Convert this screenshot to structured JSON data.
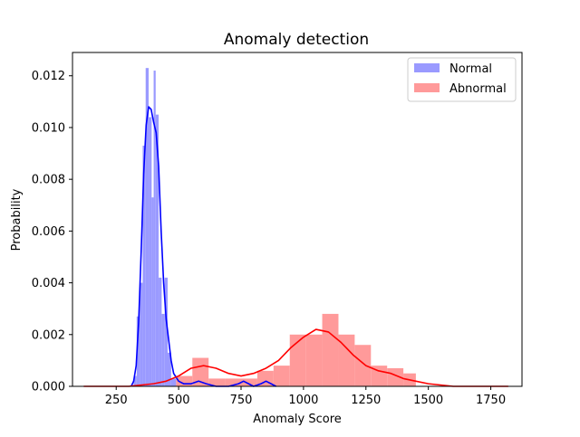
{
  "chart_data": {
    "type": "histogram",
    "title": "Anomaly detection",
    "xlabel": "Anomaly Score",
    "ylabel": "Probability",
    "xlim": [
      75,
      1875
    ],
    "ylim": [
      0,
      0.0129
    ],
    "xticks": [
      250,
      500,
      750,
      1000,
      1250,
      1500,
      1750
    ],
    "yticks": [
      0.0,
      0.002,
      0.004,
      0.006,
      0.008,
      0.01,
      0.012
    ],
    "xtick_labels": [
      "250",
      "500",
      "750",
      "1000",
      "1250",
      "1500",
      "1750"
    ],
    "ytick_labels": [
      "0.000",
      "0.002",
      "0.004",
      "0.006",
      "0.008",
      "0.010",
      "0.012"
    ],
    "legend": {
      "position": "top-right",
      "entries": [
        "Normal",
        "Abnormal"
      ]
    },
    "series": [
      {
        "name": "Normal",
        "color": "#0000ff",
        "bar_color": "#9a9aff",
        "bins": [
          {
            "x0": 310,
            "x1": 320,
            "y": 0.0
          },
          {
            "x0": 320,
            "x1": 332,
            "y": 0.0004
          },
          {
            "x0": 332,
            "x1": 344,
            "y": 0.0027
          },
          {
            "x0": 344,
            "x1": 356,
            "y": 0.004
          },
          {
            "x0": 356,
            "x1": 368,
            "y": 0.0093
          },
          {
            "x0": 368,
            "x1": 380,
            "y": 0.0123
          },
          {
            "x0": 380,
            "x1": 392,
            "y": 0.0104
          },
          {
            "x0": 392,
            "x1": 400,
            "y": 0.0073
          },
          {
            "x0": 400,
            "x1": 408,
            "y": 0.0122
          },
          {
            "x0": 408,
            "x1": 420,
            "y": 0.0105
          },
          {
            "x0": 420,
            "x1": 432,
            "y": 0.0042
          },
          {
            "x0": 432,
            "x1": 444,
            "y": 0.0028
          },
          {
            "x0": 444,
            "x1": 456,
            "y": 0.0042
          },
          {
            "x0": 456,
            "x1": 470,
            "y": 0.0013
          },
          {
            "x0": 470,
            "x1": 490,
            "y": 0.0003
          },
          {
            "x0": 490,
            "x1": 520,
            "y": 0.0001
          },
          {
            "x0": 560,
            "x1": 600,
            "y": 0.0003
          },
          {
            "x0": 745,
            "x1": 775,
            "y": 0.0002
          },
          {
            "x0": 840,
            "x1": 870,
            "y": 0.0002
          }
        ],
        "kde": [
          [
            310,
            0.0
          ],
          [
            320,
            0.0002
          ],
          [
            330,
            0.0008
          ],
          [
            340,
            0.0025
          ],
          [
            350,
            0.0052
          ],
          [
            360,
            0.0082
          ],
          [
            370,
            0.0101
          ],
          [
            380,
            0.0108
          ],
          [
            390,
            0.0107
          ],
          [
            400,
            0.0102
          ],
          [
            410,
            0.0098
          ],
          [
            420,
            0.0085
          ],
          [
            430,
            0.006
          ],
          [
            440,
            0.004
          ],
          [
            450,
            0.0026
          ],
          [
            460,
            0.0018
          ],
          [
            470,
            0.001
          ],
          [
            480,
            0.0005
          ],
          [
            500,
            0.0002
          ],
          [
            520,
            0.0001
          ],
          [
            550,
            0.0001
          ],
          [
            580,
            0.0002
          ],
          [
            610,
            0.0001
          ],
          [
            650,
            0.0
          ],
          [
            700,
            0.0
          ],
          [
            740,
            0.0001
          ],
          [
            760,
            0.0002
          ],
          [
            780,
            0.0001
          ],
          [
            800,
            0.0
          ],
          [
            830,
            0.0001
          ],
          [
            850,
            0.0002
          ],
          [
            870,
            0.0001
          ],
          [
            890,
            0.0
          ]
        ]
      },
      {
        "name": "Abnormal",
        "color": "#ff0000",
        "bar_color": "#ff9a9a",
        "bins": [
          {
            "x0": 490,
            "x1": 555,
            "y": 0.0004
          },
          {
            "x0": 555,
            "x1": 620,
            "y": 0.0011
          },
          {
            "x0": 620,
            "x1": 685,
            "y": 0.0003
          },
          {
            "x0": 685,
            "x1": 750,
            "y": 0.0003
          },
          {
            "x0": 750,
            "x1": 815,
            "y": 0.0003
          },
          {
            "x0": 815,
            "x1": 880,
            "y": 0.0006
          },
          {
            "x0": 880,
            "x1": 945,
            "y": 0.0008
          },
          {
            "x0": 945,
            "x1": 1010,
            "y": 0.002
          },
          {
            "x0": 1010,
            "x1": 1075,
            "y": 0.002
          },
          {
            "x0": 1075,
            "x1": 1140,
            "y": 0.0028
          },
          {
            "x0": 1140,
            "x1": 1205,
            "y": 0.002
          },
          {
            "x0": 1205,
            "x1": 1270,
            "y": 0.0016
          },
          {
            "x0": 1270,
            "x1": 1335,
            "y": 0.0008
          },
          {
            "x0": 1335,
            "x1": 1400,
            "y": 0.0007
          },
          {
            "x0": 1400,
            "x1": 1450,
            "y": 0.0005
          }
        ],
        "kde": [
          [
            120,
            0.0
          ],
          [
            200,
            0.0
          ],
          [
            300,
            0.0
          ],
          [
            400,
            0.0001
          ],
          [
            450,
            0.0002
          ],
          [
            500,
            0.0004
          ],
          [
            550,
            0.0007
          ],
          [
            600,
            0.0008
          ],
          [
            650,
            0.0007
          ],
          [
            700,
            0.0005
          ],
          [
            750,
            0.0004
          ],
          [
            800,
            0.0005
          ],
          [
            850,
            0.0007
          ],
          [
            900,
            0.001
          ],
          [
            950,
            0.0015
          ],
          [
            1000,
            0.0019
          ],
          [
            1050,
            0.0022
          ],
          [
            1100,
            0.0021
          ],
          [
            1150,
            0.0017
          ],
          [
            1200,
            0.0012
          ],
          [
            1250,
            0.0008
          ],
          [
            1300,
            0.0006
          ],
          [
            1350,
            0.0005
          ],
          [
            1400,
            0.0003
          ],
          [
            1450,
            0.0002
          ],
          [
            1500,
            0.0001
          ],
          [
            1600,
            0.0
          ],
          [
            1700,
            0.0
          ],
          [
            1820,
            0.0
          ]
        ]
      }
    ]
  }
}
